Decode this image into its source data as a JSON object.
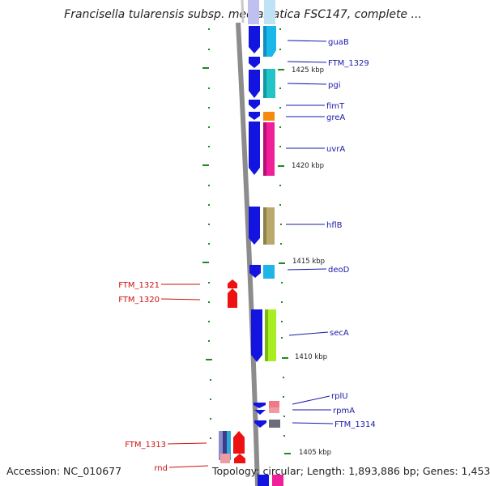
{
  "title": "Francisella tularensis subsp. mediasiatica FSC147, complete ...",
  "footer": {
    "accession": "Accession: NC_010677",
    "info": "Topology: circular; Length: 1,893,886 bp; Genes: 1,453"
  },
  "scale_labels": [
    "1425 kbp",
    "1420 kbp",
    "1415 kbp",
    "1410 kbp",
    "1405 kbp"
  ],
  "right_genes": [
    "guaB",
    "FTM_1329",
    "pgi",
    "fimT",
    "greA",
    "uvrA",
    "hflB",
    "deoD",
    "secA",
    "rplU",
    "rpmA",
    "FTM_1314"
  ],
  "left_genes": [
    "FTM_1321",
    "FTM_1320",
    "FTM_1313",
    "rnd"
  ],
  "colors": {
    "right_label": "#1a1aa8",
    "left_label": "#cc1111",
    "strand_arrow": "#1414e0",
    "tick": "#1f8a1f",
    "backbone": "#8c8c8c"
  }
}
